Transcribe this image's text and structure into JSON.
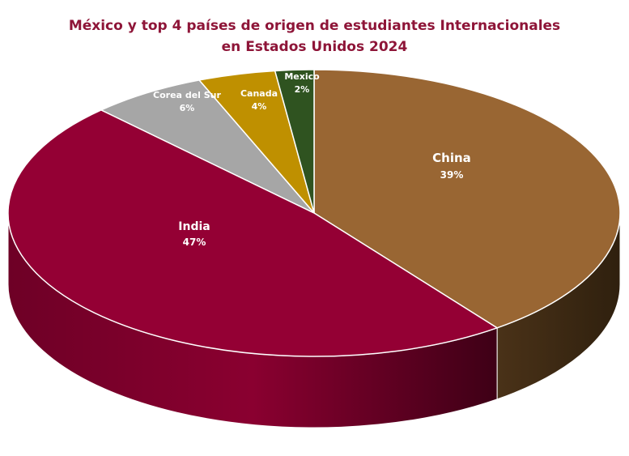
{
  "chart_data": {
    "type": "pie",
    "title": "México y top 4 países de origen de estudiantes Internacionales en Estados Unidos 2024",
    "title_lines": [
      "México y top 4 países de origen de estudiantes Internacionales",
      "en Estados Unidos 2024"
    ],
    "style": "3d",
    "slices": [
      {
        "label": "China",
        "value": 39,
        "display": "39%",
        "color": "#996633",
        "side_color": "#3d2913"
      },
      {
        "label": "India",
        "value": 47,
        "display": "47%",
        "color": "#940034",
        "side_color": "#5e0021"
      },
      {
        "label": "Corea del Sur",
        "value": 6,
        "display": "6%",
        "color": "#a6a6a6",
        "side_color": "#6b6b6b"
      },
      {
        "label": "Canada",
        "value": 4,
        "display": "4%",
        "color": "#bf9000",
        "side_color": "#7a5c00"
      },
      {
        "label": "Mexico",
        "value": 2,
        "display": "2%",
        "color": "#2f5320",
        "side_color": "#1b3012"
      }
    ]
  }
}
